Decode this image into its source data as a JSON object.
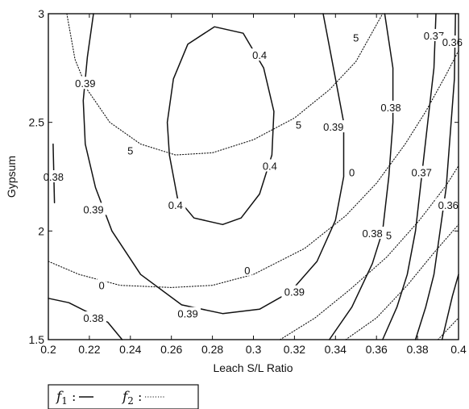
{
  "chart_data": {
    "type": "contour",
    "xlabel": "Leach S/L Ratio",
    "ylabel": "Gypsum",
    "xlim": [
      0.2,
      0.4
    ],
    "ylim": [
      1.5,
      3
    ],
    "x_ticks": [
      "0.2",
      "0.22",
      "0.24",
      "0.26",
      "0.28",
      "0.3",
      "0.32",
      "0.34",
      "0.36",
      "0.38",
      "0.4"
    ],
    "y_ticks": [
      "1.5",
      "2",
      "2.5",
      "3"
    ],
    "grid": false,
    "series": [
      {
        "name": "f1",
        "style": "solid",
        "levels": [
          {
            "level": "0.4",
            "paths": [
              [
                [
                  0.285,
                  2.03
                ],
                [
                  0.271,
                  2.06
                ],
                [
                  0.263,
                  2.15
                ],
                [
                  0.259,
                  2.35
                ],
                [
                  0.258,
                  2.5
                ],
                [
                  0.261,
                  2.7
                ],
                [
                  0.268,
                  2.86
                ],
                [
                  0.281,
                  2.94
                ],
                [
                  0.295,
                  2.91
                ],
                [
                  0.305,
                  2.75
                ],
                [
                  0.31,
                  2.55
                ],
                [
                  0.309,
                  2.35
                ],
                [
                  0.303,
                  2.17
                ],
                [
                  0.294,
                  2.06
                ],
                [
                  0.285,
                  2.03
                ]
              ]
            ]
          },
          {
            "level": "0.39",
            "paths": [
              [
                [
                  0.222,
                  3.0
                ],
                [
                  0.219,
                  2.8
                ],
                [
                  0.217,
                  2.6
                ],
                [
                  0.218,
                  2.4
                ],
                [
                  0.223,
                  2.2
                ],
                [
                  0.231,
                  2.0
                ],
                [
                  0.245,
                  1.8
                ],
                [
                  0.265,
                  1.66
                ],
                [
                  0.285,
                  1.62
                ],
                [
                  0.303,
                  1.64
                ],
                [
                  0.318,
                  1.72
                ],
                [
                  0.331,
                  1.86
                ],
                [
                  0.34,
                  2.05
                ],
                [
                  0.344,
                  2.25
                ],
                [
                  0.344,
                  2.5
                ],
                [
                  0.339,
                  2.75
                ],
                [
                  0.334,
                  3.0
                ]
              ]
            ]
          },
          {
            "level": "0.38",
            "paths": [
              [
                [
                  0.203,
                  2.13
                ],
                [
                  0.2023,
                  2.4
                ]
              ],
              [
                [
                  0.2,
                  1.69
                ],
                [
                  0.21,
                  1.67
                ],
                [
                  0.229,
                  1.58
                ],
                [
                  0.236,
                  1.5
                ]
              ],
              [
                [
                  0.364,
                  3.0
                ],
                [
                  0.368,
                  2.75
                ],
                [
                  0.368,
                  2.5
                ],
                [
                  0.366,
                  2.25
                ],
                [
                  0.363,
                  2.0
                ],
                [
                  0.358,
                  1.85
                ],
                [
                  0.348,
                  1.65
                ],
                [
                  0.337,
                  1.5
                ]
              ]
            ]
          },
          {
            "level": "0.37",
            "paths": [
              [
                [
                  0.389,
                  3.0
                ],
                [
                  0.388,
                  2.75
                ],
                [
                  0.385,
                  2.5
                ],
                [
                  0.382,
                  2.25
                ],
                [
                  0.379,
                  2.0
                ],
                [
                  0.375,
                  1.8
                ],
                [
                  0.37,
                  1.65
                ],
                [
                  0.363,
                  1.5
                ]
              ]
            ]
          },
          {
            "level": "0.36",
            "paths": [
              [
                [
                  0.3985,
                  3.0
                ],
                [
                  0.398,
                  2.7
                ],
                [
                  0.396,
                  2.45
                ],
                [
                  0.394,
                  2.2
                ],
                [
                  0.391,
                  2.0
                ],
                [
                  0.388,
                  1.8
                ],
                [
                  0.384,
                  1.65
                ],
                [
                  0.379,
                  1.5
                ]
              ]
            ]
          },
          {
            "level": "",
            "paths": [
              [
                [
                  0.4,
                  1.8
                ],
                [
                  0.397,
                  1.7
                ],
                [
                  0.392,
                  1.5
                ]
              ]
            ]
          }
        ]
      },
      {
        "name": "f2",
        "style": "dotted",
        "levels": [
          {
            "level": "5",
            "paths": [
              [
                [
                  0.209,
                  3.0
                ],
                [
                  0.213,
                  2.79
                ],
                [
                  0.219,
                  2.65
                ],
                [
                  0.23,
                  2.5
                ],
                [
                  0.245,
                  2.4
                ],
                [
                  0.262,
                  2.35
                ],
                [
                  0.28,
                  2.36
                ],
                [
                  0.3,
                  2.42
                ],
                [
                  0.32,
                  2.52
                ],
                [
                  0.337,
                  2.65
                ],
                [
                  0.35,
                  2.78
                ],
                [
                  0.363,
                  3.0
                ]
              ],
              [
                [
                  0.313,
                  1.5
                ],
                [
                  0.33,
                  1.6
                ],
                [
                  0.347,
                  1.73
                ],
                [
                  0.365,
                  1.88
                ],
                [
                  0.381,
                  2.05
                ],
                [
                  0.394,
                  2.21
                ],
                [
                  0.4,
                  2.3
                ]
              ]
            ]
          },
          {
            "level": "0",
            "paths": [
              [
                [
                  0.2,
                  1.86
                ],
                [
                  0.215,
                  1.8
                ],
                [
                  0.235,
                  1.75
                ],
                [
                  0.26,
                  1.74
                ],
                [
                  0.28,
                  1.75
                ],
                [
                  0.3,
                  1.8
                ],
                [
                  0.325,
                  1.92
                ],
                [
                  0.345,
                  2.07
                ],
                [
                  0.36,
                  2.22
                ],
                [
                  0.374,
                  2.4
                ],
                [
                  0.384,
                  2.55
                ],
                [
                  0.394,
                  2.72
                ],
                [
                  0.4,
                  2.83
                ]
              ],
              [
                [
                  0.345,
                  1.5
                ],
                [
                  0.36,
                  1.6
                ],
                [
                  0.375,
                  1.75
                ],
                [
                  0.388,
                  1.9
                ],
                [
                  0.4,
                  2.03
                ]
              ]
            ]
          },
          {
            "level": "",
            "paths": [
              [
                [
                  0.39,
                  1.5
                ],
                [
                  0.4,
                  1.6
                ]
              ]
            ]
          }
        ]
      }
    ],
    "contour_labels": [
      {
        "text": "0.4",
        "x": 0.303,
        "y": 2.81,
        "series": "f1"
      },
      {
        "text": "0.4",
        "x": 0.308,
        "y": 2.3,
        "series": "f1"
      },
      {
        "text": "0.4",
        "x": 0.262,
        "y": 2.12,
        "series": "f1"
      },
      {
        "text": "0.39",
        "x": 0.218,
        "y": 2.68,
        "series": "f1"
      },
      {
        "text": "0.39",
        "x": 0.222,
        "y": 2.1,
        "series": "f1"
      },
      {
        "text": "0.39",
        "x": 0.339,
        "y": 2.48,
        "series": "f1"
      },
      {
        "text": "0.39",
        "x": 0.32,
        "y": 1.72,
        "series": "f1"
      },
      {
        "text": "0.39",
        "x": 0.268,
        "y": 1.62,
        "series": "f1"
      },
      {
        "text": "0.38",
        "x": 0.2025,
        "y": 2.25,
        "series": "f1"
      },
      {
        "text": "0.38",
        "x": 0.222,
        "y": 1.6,
        "series": "f1"
      },
      {
        "text": "0.38",
        "x": 0.367,
        "y": 2.57,
        "series": "f1"
      },
      {
        "text": "0.38",
        "x": 0.358,
        "y": 1.99,
        "series": "f1"
      },
      {
        "text": "0.37",
        "x": 0.388,
        "y": 2.9,
        "series": "f1"
      },
      {
        "text": "0.37",
        "x": 0.382,
        "y": 2.27,
        "series": "f1"
      },
      {
        "text": "0.36",
        "x": 0.397,
        "y": 2.87,
        "series": "f1"
      },
      {
        "text": "0.36",
        "x": 0.395,
        "y": 2.12,
        "series": "f1"
      },
      {
        "text": "5",
        "x": 0.35,
        "y": 2.89,
        "series": "f2"
      },
      {
        "text": "5",
        "x": 0.322,
        "y": 2.49,
        "series": "f2"
      },
      {
        "text": "5",
        "x": 0.24,
        "y": 2.37,
        "series": "f2"
      },
      {
        "text": "5",
        "x": 0.366,
        "y": 1.98,
        "series": "f2"
      },
      {
        "text": "0",
        "x": 0.348,
        "y": 2.27,
        "series": "f2"
      },
      {
        "text": "0",
        "x": 0.297,
        "y": 1.82,
        "series": "f2"
      },
      {
        "text": "0",
        "x": 0.226,
        "y": 1.75,
        "series": "f2"
      }
    ],
    "legend": {
      "placement": "below-left",
      "entries": [
        {
          "label": "f",
          "sub": "1",
          "suffix": " :",
          "style": "solid"
        },
        {
          "label": "f",
          "sub": "2",
          "suffix": " :",
          "style": "dotted"
        }
      ]
    }
  },
  "colors": {
    "line": "#111111",
    "background": "#ffffff"
  }
}
